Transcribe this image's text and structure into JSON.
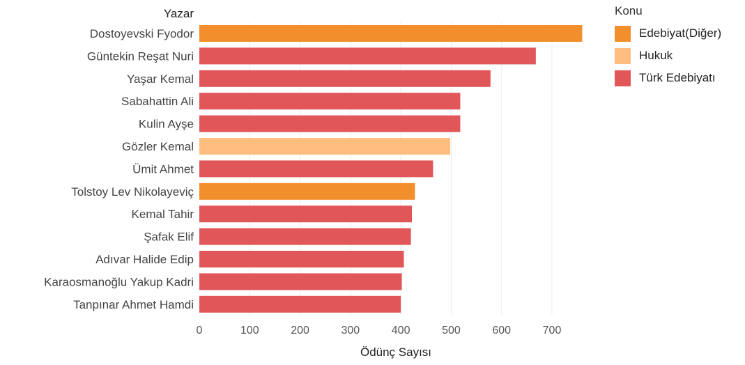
{
  "chart_data": {
    "type": "bar",
    "orientation": "horizontal",
    "y_header": "Yazar",
    "xlabel": "Ödünç Sayısı",
    "xlim": [
      0,
      800
    ],
    "xticks": [
      0,
      100,
      200,
      300,
      400,
      500,
      600,
      700
    ],
    "grid": "vertical",
    "legend": {
      "title": "Konu",
      "placement": "top-right",
      "items": [
        {
          "label": "Edebiyat(Diğer)",
          "color": "#f28e2b"
        },
        {
          "label": "Hukuk",
          "color": "#ffbe7d"
        },
        {
          "label": "Türk Edebiyatı",
          "color": "#e15759"
        }
      ]
    },
    "categories": [
      "Dostoyevski Fyodor",
      "Güntekin Reşat Nuri",
      "Yaşar Kemal",
      "Sabahattin Ali",
      "Kulin Ayşe",
      "Gözler Kemal",
      "Ümit Ahmet",
      "Tolstoy Lev Nikolayeviç",
      "Kemal Tahir",
      "Şafak Elif",
      "Adıvar Halide Edip",
      "Karaosmanoğlu Yakup Kadri",
      "Tanpınar Ahmet Hamdi"
    ],
    "values": [
      760,
      668,
      578,
      518,
      518,
      498,
      464,
      428,
      422,
      420,
      406,
      402,
      400
    ],
    "groups": [
      "Edebiyat(Diğer)",
      "Türk Edebiyatı",
      "Türk Edebiyatı",
      "Türk Edebiyatı",
      "Türk Edebiyatı",
      "Hukuk",
      "Türk Edebiyatı",
      "Edebiyat(Diğer)",
      "Türk Edebiyatı",
      "Türk Edebiyatı",
      "Türk Edebiyatı",
      "Türk Edebiyatı",
      "Türk Edebiyatı"
    ]
  }
}
